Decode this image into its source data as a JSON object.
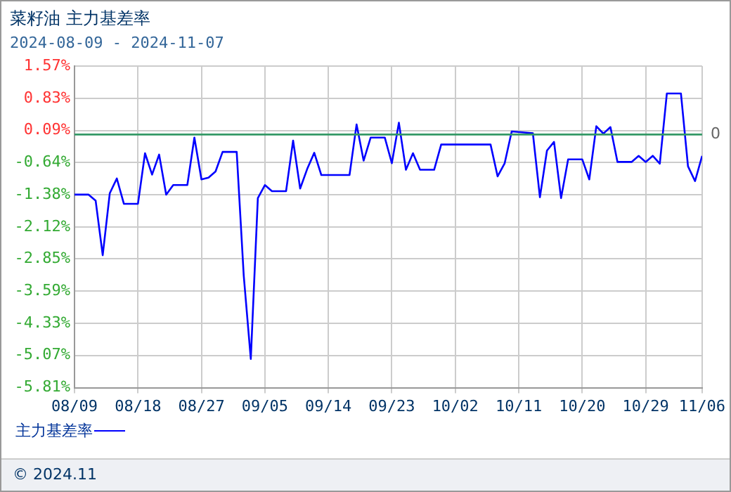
{
  "chart_data": {
    "type": "line",
    "title": "菜籽油 主力基差率",
    "subtitle": "2024-08-09 - 2024-11-07",
    "x": [
      "2024-08-09",
      "2024-08-11",
      "2024-08-12",
      "2024-08-13",
      "2024-08-14",
      "2024-08-15",
      "2024-08-16",
      "2024-08-18",
      "2024-08-19",
      "2024-08-20",
      "2024-08-21",
      "2024-08-22",
      "2024-08-23",
      "2024-08-25",
      "2024-08-26",
      "2024-08-27",
      "2024-08-28",
      "2024-08-29",
      "2024-08-30",
      "2024-09-01",
      "2024-09-02",
      "2024-09-03",
      "2024-09-04",
      "2024-09-05",
      "2024-09-06",
      "2024-09-08",
      "2024-09-09",
      "2024-09-10",
      "2024-09-11",
      "2024-09-12",
      "2024-09-13",
      "2024-09-17",
      "2024-09-18",
      "2024-09-19",
      "2024-09-20",
      "2024-09-22",
      "2024-09-23",
      "2024-09-24",
      "2024-09-25",
      "2024-09-26",
      "2024-09-27",
      "2024-09-29",
      "2024-09-30",
      "2024-10-07",
      "2024-10-08",
      "2024-10-09",
      "2024-10-10",
      "2024-10-13",
      "2024-10-14",
      "2024-10-15",
      "2024-10-16",
      "2024-10-17",
      "2024-10-18",
      "2024-10-20",
      "2024-10-21",
      "2024-10-22",
      "2024-10-23",
      "2024-10-24",
      "2024-10-25",
      "2024-10-27",
      "2024-10-28",
      "2024-10-29",
      "2024-10-30",
      "2024-10-31",
      "2024-11-01",
      "2024-11-03",
      "2024-11-04",
      "2024-11-05",
      "2024-11-06"
    ],
    "series": [
      {
        "name": "主力基差率",
        "color": "#0000ff",
        "values": [
          -1.38,
          -1.38,
          -1.52,
          -2.77,
          -1.35,
          -1.01,
          -1.59,
          -1.59,
          -0.43,
          -0.92,
          -0.46,
          -1.38,
          -1.16,
          -1.16,
          -0.07,
          -1.03,
          -0.99,
          -0.85,
          -0.4,
          -0.4,
          -3.24,
          -5.15,
          -1.46,
          -1.16,
          -1.3,
          -1.3,
          -0.14,
          -1.24,
          -0.79,
          -0.42,
          -0.93,
          -0.93,
          0.23,
          -0.6,
          -0.07,
          -0.07,
          -0.66,
          0.27,
          -0.81,
          -0.43,
          -0.81,
          -0.81,
          -0.23,
          -0.23,
          -0.96,
          -0.66,
          0.07,
          0.03,
          -1.44,
          -0.37,
          -0.17,
          -1.46,
          -0.57,
          -0.57,
          -1.03,
          0.19,
          0.02,
          0.17,
          -0.63,
          -0.63,
          -0.49,
          -0.63,
          -0.49,
          -0.67,
          0.94,
          0.94,
          -0.73,
          -1.07,
          -0.49
        ]
      }
    ],
    "xlim": [
      "2024-08-09",
      "2024-11-06"
    ],
    "xticks": [
      {
        "value": "2024-08-09",
        "label": "08/09"
      },
      {
        "value": "2024-08-18",
        "label": "08/18"
      },
      {
        "value": "2024-08-27",
        "label": "08/27"
      },
      {
        "value": "2024-09-05",
        "label": "09/05"
      },
      {
        "value": "2024-09-14",
        "label": "09/14"
      },
      {
        "value": "2024-09-23",
        "label": "09/23"
      },
      {
        "value": "2024-10-02",
        "label": "10/02"
      },
      {
        "value": "2024-10-11",
        "label": "10/11"
      },
      {
        "value": "2024-10-20",
        "label": "10/20"
      },
      {
        "value": "2024-10-29",
        "label": "10/29"
      },
      {
        "value": "2024-11-06",
        "label": "11/06"
      }
    ],
    "ylim": [
      -5.81,
      1.57
    ],
    "yticks": [
      {
        "value": -5.81,
        "label": "-5.81%"
      },
      {
        "value": -5.07,
        "label": "-5.07%"
      },
      {
        "value": -4.33,
        "label": "-4.33%"
      },
      {
        "value": -3.59,
        "label": "-3.59%"
      },
      {
        "value": -2.85,
        "label": "-2.85%"
      },
      {
        "value": -2.12,
        "label": "-2.12%"
      },
      {
        "value": -1.38,
        "label": "-1.38%"
      },
      {
        "value": -0.64,
        "label": "-0.64%"
      },
      {
        "value": 0.09,
        "label": "0.09%"
      },
      {
        "value": 0.83,
        "label": "0.83%"
      },
      {
        "value": 1.57,
        "label": "1.57%"
      }
    ],
    "ref_lines": [
      {
        "axis": "y",
        "value": 0,
        "label": "0",
        "color": "#339966"
      }
    ],
    "grid": true,
    "legend": "bottom left",
    "marker": "none",
    "line_style": "solid",
    "annotations": [
      "© 2024.11"
    ]
  }
}
